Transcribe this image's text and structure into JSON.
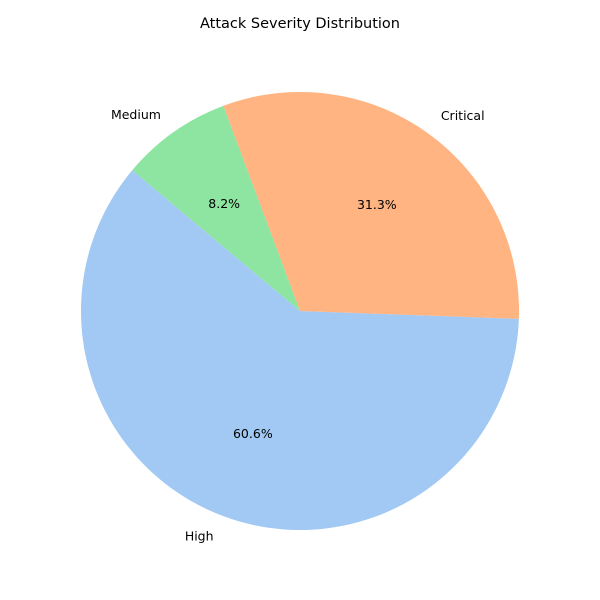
{
  "chart_data": {
    "type": "pie",
    "title": "Attack Severity Distribution",
    "slices": [
      {
        "label": "High",
        "value": 60.6,
        "display": "60.6%",
        "color": "#a1c9f4"
      },
      {
        "label": "Critical",
        "value": 31.3,
        "display": "31.3%",
        "color": "#ffb482"
      },
      {
        "label": "Medium",
        "value": 8.2,
        "display": "8.2%",
        "color": "#8de5a1"
      }
    ],
    "start_angle_deg": 140,
    "direction": "counterclockwise"
  }
}
